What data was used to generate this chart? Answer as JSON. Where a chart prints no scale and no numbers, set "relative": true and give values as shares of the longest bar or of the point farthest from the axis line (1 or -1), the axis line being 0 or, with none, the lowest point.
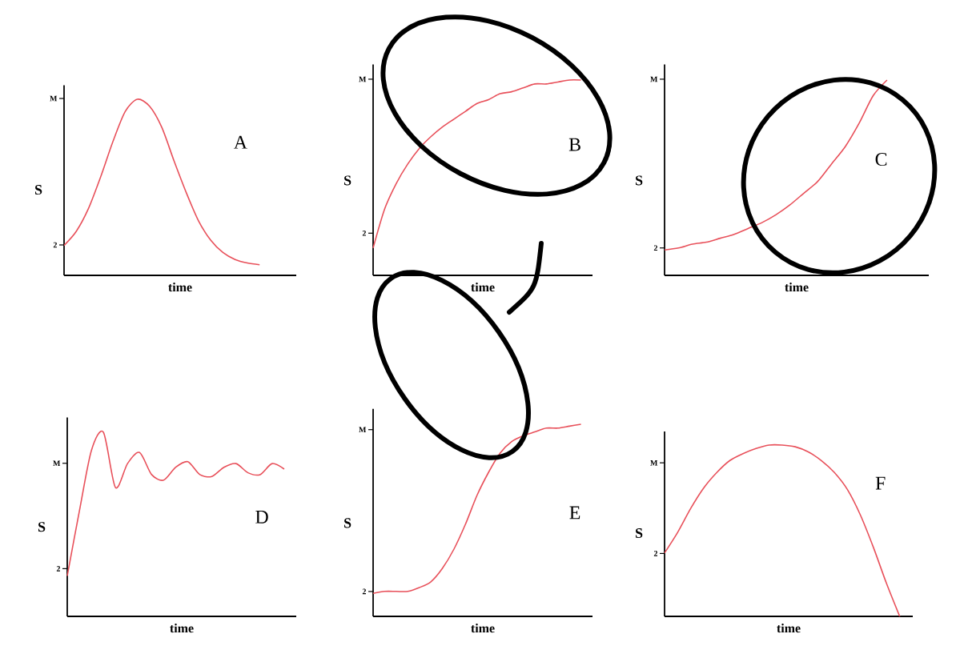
{
  "chart_data": [
    {
      "type": "line",
      "title": "A",
      "xlabel": "time",
      "ylabel": "S",
      "relative": true,
      "color": "#e8505a",
      "categories": [
        null,
        null,
        null,
        null,
        null,
        null,
        null,
        null,
        null,
        null,
        null,
        null,
        null,
        null,
        null,
        null,
        null,
        null,
        null,
        null
      ],
      "values": [
        0.17,
        0.25,
        0.38,
        0.56,
        0.76,
        0.93,
        1.0,
        0.96,
        0.84,
        0.65,
        0.47,
        0.31,
        0.2,
        0.13,
        0.09,
        0.07,
        0.06,
        null,
        null,
        null
      ],
      "annotations": [
        "M",
        "2"
      ]
    },
    {
      "type": "line",
      "title": "B",
      "xlabel": "time",
      "ylabel": "S",
      "relative": true,
      "color": "#e8505a",
      "categories": [
        null,
        null,
        null,
        null,
        null,
        null,
        null,
        null,
        null,
        null,
        null,
        null,
        null,
        null,
        null,
        null,
        null,
        null,
        null,
        null
      ],
      "values": [
        0.14,
        0.34,
        0.47,
        0.57,
        0.65,
        0.71,
        0.76,
        0.8,
        0.84,
        0.88,
        0.9,
        0.93,
        0.94,
        0.96,
        0.98,
        0.98,
        0.99,
        1.0,
        1.0,
        null
      ],
      "annotations": [
        "M",
        "2"
      ]
    },
    {
      "type": "line",
      "title": "C",
      "xlabel": "time",
      "ylabel": "S",
      "relative": true,
      "color": "#e8505a",
      "categories": [
        null,
        null,
        null,
        null,
        null,
        null,
        null,
        null,
        null,
        null,
        null,
        null,
        null,
        null,
        null,
        null,
        null,
        null,
        null,
        null
      ],
      "values": [
        0.13,
        0.14,
        0.16,
        0.17,
        0.19,
        0.21,
        0.24,
        0.27,
        0.31,
        0.36,
        0.42,
        0.48,
        0.57,
        0.66,
        0.78,
        0.92,
        1.0,
        null,
        null,
        null
      ],
      "annotations": [
        "M",
        "2"
      ]
    },
    {
      "type": "line",
      "title": "D",
      "xlabel": "time",
      "ylabel": "S",
      "relative": true,
      "color": "#e8505a",
      "categories": [
        null,
        null,
        null,
        null,
        null,
        null,
        null,
        null,
        null,
        null,
        null,
        null,
        null,
        null,
        null,
        null,
        null,
        null,
        null,
        null
      ],
      "values": [
        0.22,
        0.57,
        0.9,
        1.0,
        0.7,
        0.83,
        0.89,
        0.77,
        0.74,
        0.81,
        0.84,
        0.77,
        0.76,
        0.81,
        0.83,
        0.78,
        0.77,
        0.83,
        0.8,
        null
      ],
      "annotations": [
        "M",
        "2"
      ]
    },
    {
      "type": "line",
      "title": "E",
      "xlabel": "time",
      "ylabel": "S",
      "relative": true,
      "color": "#e8505a",
      "categories": [
        null,
        null,
        null,
        null,
        null,
        null,
        null,
        null,
        null,
        null,
        null,
        null,
        null,
        null,
        null,
        null,
        null,
        null,
        null,
        null
      ],
      "values": [
        0.12,
        0.13,
        0.13,
        0.13,
        0.15,
        0.18,
        0.25,
        0.35,
        0.48,
        0.63,
        0.75,
        0.85,
        0.91,
        0.94,
        0.96,
        0.98,
        0.98,
        0.99,
        1.0,
        null
      ],
      "annotations": [
        "M",
        "2"
      ]
    },
    {
      "type": "line",
      "title": "F",
      "xlabel": "time",
      "ylabel": "S",
      "relative": true,
      "color": "#e8505a",
      "categories": [
        null,
        null,
        null,
        null,
        null,
        null,
        null,
        null,
        null,
        null,
        null,
        null,
        null,
        null,
        null,
        null,
        null,
        null,
        null,
        null
      ],
      "values": [
        0.37,
        0.49,
        0.63,
        0.75,
        0.84,
        0.91,
        0.95,
        0.98,
        1.0,
        1.0,
        0.99,
        0.96,
        0.91,
        0.84,
        0.74,
        0.59,
        0.4,
        0.19,
        0.0,
        null
      ],
      "annotations": [
        "M",
        "2"
      ]
    }
  ]
}
